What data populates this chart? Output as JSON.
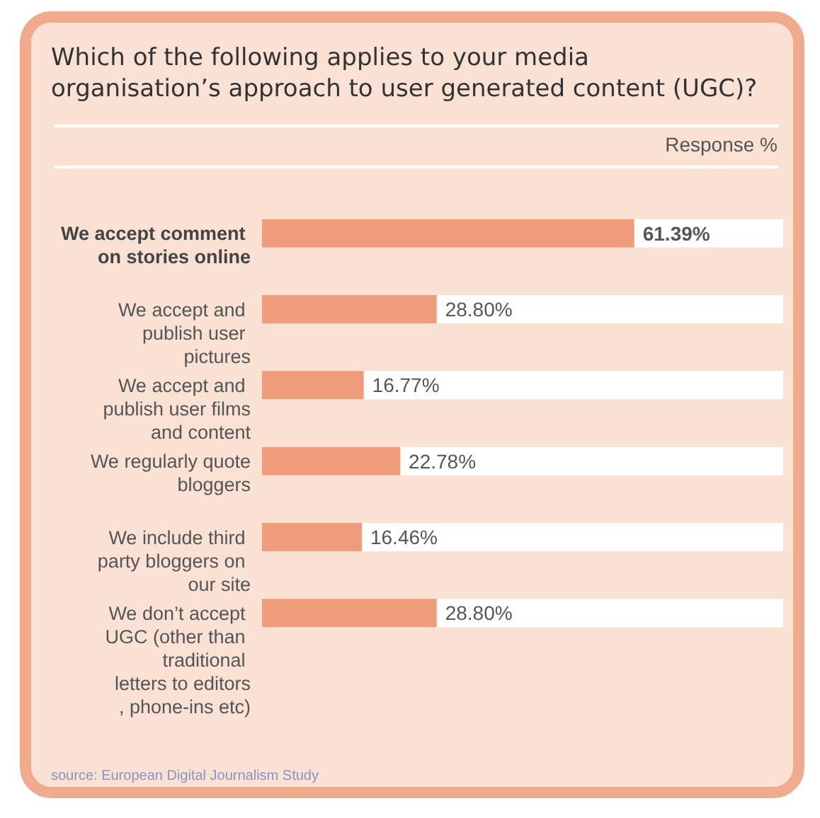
{
  "chart_data": {
    "type": "bar",
    "orientation": "horizontal",
    "title": "Which of the following applies to your media organisation’s approach to user generated content (UGC)?",
    "xlabel": "Response  %",
    "categories": [
      "We accept comment on stories online",
      "We accept and publish user pictures",
      "We accept and publish user films and content",
      "We regularly quote bloggers",
      "We include third party bloggers on our site",
      "We don’t accept UGC (other than traditional letters to editors, phone-ins etc)"
    ],
    "values": [
      61.39,
      28.8,
      16.77,
      22.78,
      16.46,
      28.8
    ],
    "value_labels": [
      "61.39%",
      "28.80%",
      "16.77%",
      "22.78%",
      "16.46%",
      "28.80%"
    ],
    "color": "#f09c7a",
    "annotations": [
      "source: European Digital Journalism Study"
    ]
  }
}
